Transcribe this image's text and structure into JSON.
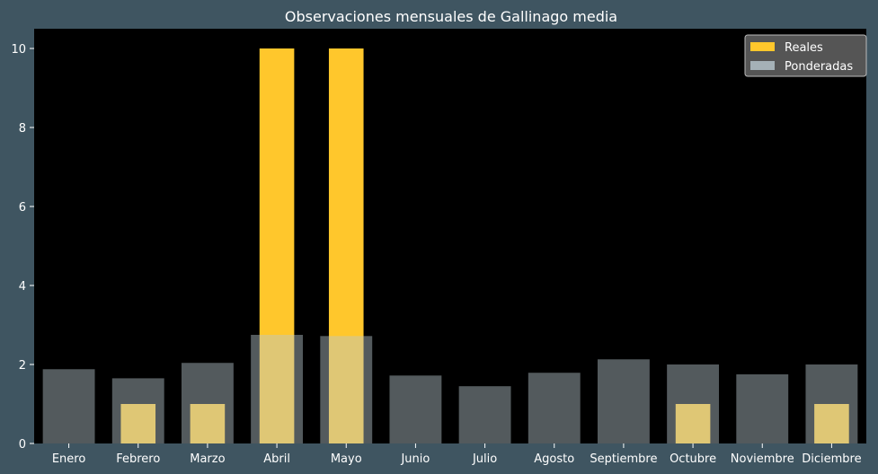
{
  "chart_data": {
    "type": "bar",
    "title": "Observaciones mensuales de Gallinago media",
    "xlabel": "",
    "ylabel": "",
    "categories": [
      "Enero",
      "Febrero",
      "Marzo",
      "Abril",
      "Mayo",
      "Junio",
      "Julio",
      "Agosto",
      "Septiembre",
      "Octubre",
      "Noviembre",
      "Diciembre"
    ],
    "series": [
      {
        "name": "Reales",
        "color": "#ffc72c",
        "values": [
          0,
          1,
          1,
          10,
          10,
          0,
          0,
          0,
          0,
          1,
          0,
          1
        ]
      },
      {
        "name": "Ponderadas",
        "color": "#b9c8cf",
        "opacity": 0.45,
        "values": [
          1.88,
          1.65,
          2.04,
          2.75,
          2.72,
          1.72,
          1.45,
          1.79,
          2.13,
          2.0,
          1.75,
          2.0
        ]
      }
    ],
    "ylim": [
      0,
      10.5
    ],
    "yticks": [
      0,
      2,
      4,
      6,
      8,
      10
    ],
    "grid": false,
    "legend": "top-right",
    "colors": {
      "background": "#3f5561",
      "plot_background": "#000000",
      "text": "#ffffff"
    }
  }
}
